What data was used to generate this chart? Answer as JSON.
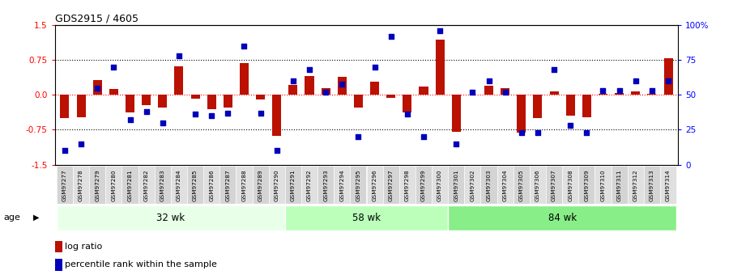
{
  "title": "GDS2915 / 4605",
  "samples": [
    "GSM97277",
    "GSM97278",
    "GSM97279",
    "GSM97280",
    "GSM97281",
    "GSM97282",
    "GSM97283",
    "GSM97284",
    "GSM97285",
    "GSM97286",
    "GSM97287",
    "GSM97288",
    "GSM97289",
    "GSM97290",
    "GSM97291",
    "GSM97292",
    "GSM97293",
    "GSM97294",
    "GSM97295",
    "GSM97296",
    "GSM97297",
    "GSM97298",
    "GSM97299",
    "GSM97300",
    "GSM97301",
    "GSM97302",
    "GSM97303",
    "GSM97304",
    "GSM97305",
    "GSM97306",
    "GSM97307",
    "GSM97308",
    "GSM97309",
    "GSM97310",
    "GSM97311",
    "GSM97312",
    "GSM97313",
    "GSM97314"
  ],
  "log_ratio": [
    -0.5,
    -0.48,
    0.32,
    0.12,
    -0.38,
    -0.22,
    -0.28,
    0.62,
    -0.08,
    -0.3,
    -0.28,
    0.68,
    -0.1,
    -0.88,
    0.22,
    0.4,
    0.15,
    0.38,
    -0.28,
    0.28,
    -0.06,
    -0.38,
    0.18,
    1.18,
    -0.8,
    0.0,
    0.2,
    0.15,
    -0.82,
    -0.5,
    0.08,
    -0.45,
    -0.48,
    0.02,
    0.04,
    0.08,
    0.02,
    0.78
  ],
  "percentile": [
    10,
    15,
    55,
    70,
    32,
    38,
    30,
    78,
    36,
    35,
    37,
    85,
    37,
    10,
    60,
    68,
    52,
    58,
    20,
    70,
    92,
    36,
    20,
    96,
    15,
    52,
    60,
    52,
    23,
    23,
    68,
    28,
    23,
    53,
    53,
    60,
    53,
    60
  ],
  "groups": [
    {
      "label": "32 wk",
      "start": 0,
      "end": 14,
      "color": "#e8ffe8"
    },
    {
      "label": "58 wk",
      "start": 14,
      "end": 24,
      "color": "#bbffbb"
    },
    {
      "label": "84 wk",
      "start": 24,
      "end": 38,
      "color": "#88ee88"
    }
  ],
  "bar_color": "#bb1100",
  "dot_color": "#0000bb",
  "bar_width": 0.55,
  "ylim": [
    -1.5,
    1.5
  ],
  "yticks_left": [
    -1.5,
    -0.75,
    0.0,
    0.75,
    1.5
  ],
  "yticks_right": [
    0,
    25,
    50,
    75,
    100
  ],
  "hlines_dotted": [
    -0.75,
    0.75
  ],
  "hline_red": 0.0,
  "background_color": "#ffffff",
  "label_bg": "#d8d8d8",
  "legend_log_ratio": "log ratio",
  "legend_percentile": "percentile rank within the sample",
  "age_label": "age"
}
